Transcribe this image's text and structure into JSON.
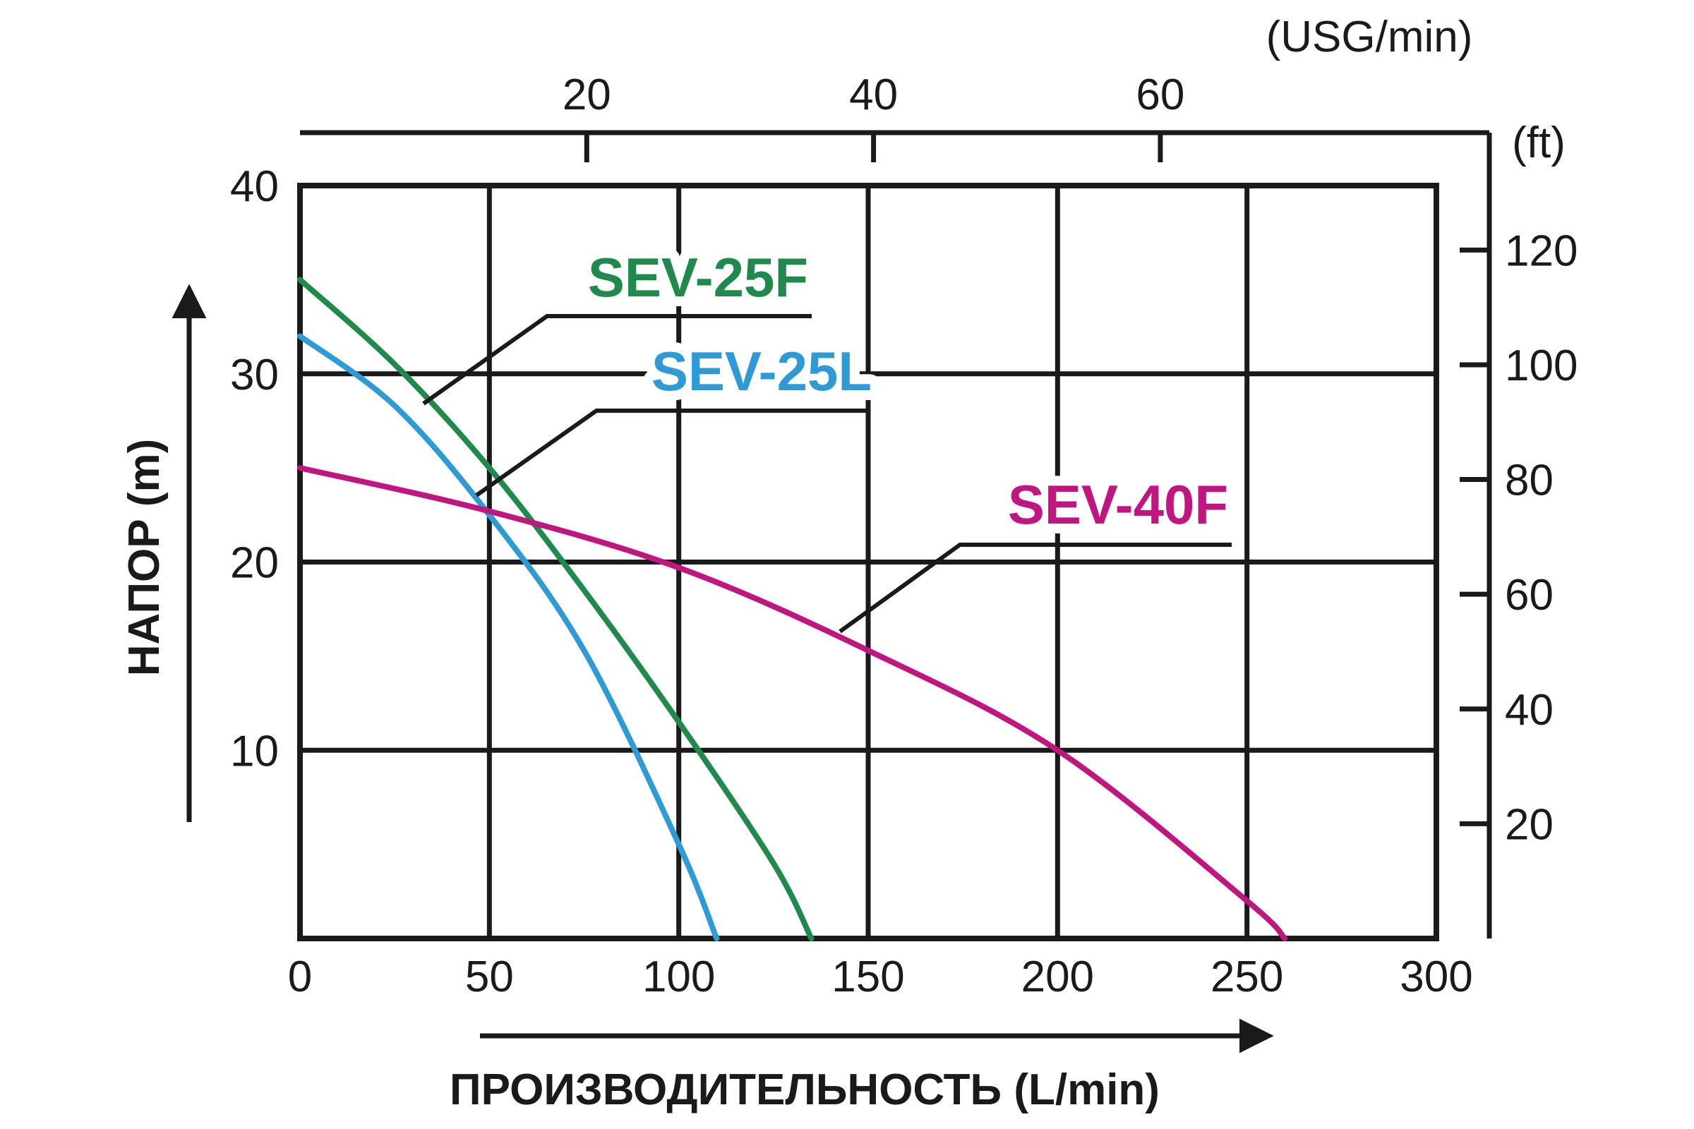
{
  "chart_data": {
    "type": "line",
    "xlabel": "ПРОИЗВОДИТЕЛЬНОСТЬ (L/min)",
    "ylabel": "НАПОР  (m)",
    "xlim": [
      0,
      300
    ],
    "ylim": [
      0,
      40
    ],
    "x_ticks": [
      "0",
      "50",
      "100",
      "150",
      "200",
      "250",
      "300"
    ],
    "y_ticks": [
      "10",
      "20",
      "30",
      "40"
    ],
    "grid": true,
    "secondary_x": {
      "unit": "(USG/min)",
      "ticks": [
        {
          "value": 20,
          "label": "20"
        },
        {
          "value": 40,
          "label": "40"
        },
        {
          "value": 60,
          "label": "60"
        }
      ]
    },
    "secondary_y": {
      "unit": "(ft)",
      "ticks": [
        {
          "value": 20,
          "label": "20"
        },
        {
          "value": 40,
          "label": "40"
        },
        {
          "value": 60,
          "label": "60"
        },
        {
          "value": 80,
          "label": "80"
        },
        {
          "value": 100,
          "label": "100"
        },
        {
          "value": 120,
          "label": "120"
        }
      ]
    },
    "series": [
      {
        "name": "SEV-25F",
        "color": "#1f8a4c",
        "x": [
          0,
          25,
          50,
          75,
          100,
          125,
          135
        ],
        "y": [
          35,
          30.5,
          25,
          18.5,
          11.5,
          4,
          0
        ]
      },
      {
        "name": "SEV-25L",
        "color": "#2f9bd6",
        "x": [
          0,
          25,
          50,
          75,
          100,
          110
        ],
        "y": [
          32,
          28.3,
          22.5,
          15.3,
          5,
          0
        ]
      },
      {
        "name": "SEV-40F",
        "color": "#c0167f",
        "x": [
          0,
          50,
          100,
          150,
          200,
          250,
          260
        ],
        "y": [
          25,
          22.7,
          19.7,
          15.3,
          10,
          2,
          0
        ]
      }
    ]
  }
}
